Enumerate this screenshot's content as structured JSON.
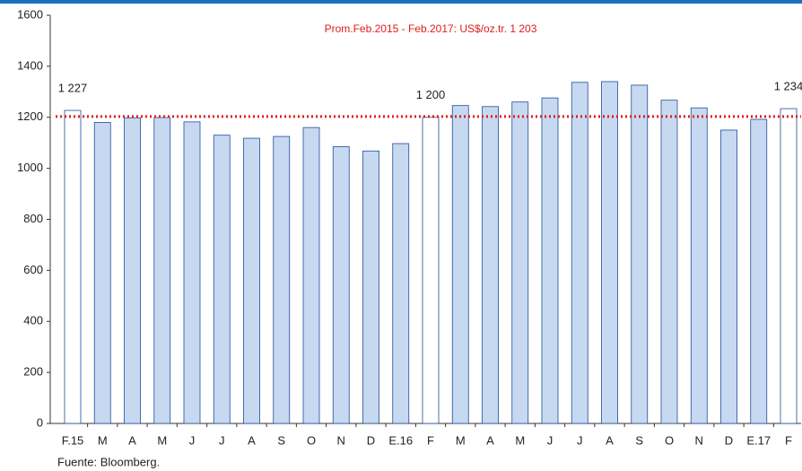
{
  "chart_data": {
    "type": "bar",
    "categories": [
      "F.15",
      "M",
      "A",
      "M",
      "J",
      "J",
      "A",
      "S",
      "O",
      "N",
      "D",
      "E.16",
      "F",
      "M",
      "A",
      "M",
      "J",
      "J",
      "A",
      "S",
      "O",
      "N",
      "D",
      "E.17",
      "F"
    ],
    "values": [
      1227,
      1180,
      1198,
      1199,
      1182,
      1130,
      1118,
      1125,
      1160,
      1085,
      1068,
      1097,
      1200,
      1246,
      1242,
      1260,
      1276,
      1337,
      1340,
      1326,
      1267,
      1237,
      1150,
      1192,
      1234
    ],
    "value_labels": [
      "1 227",
      null,
      null,
      null,
      null,
      null,
      null,
      null,
      null,
      null,
      null,
      null,
      "1 200",
      null,
      null,
      null,
      null,
      null,
      null,
      null,
      null,
      null,
      null,
      null,
      "1 234"
    ],
    "colors": [
      "#ffffff",
      "#c6d9f1",
      "#c6d9f1",
      "#c6d9f1",
      "#c6d9f1",
      "#c6d9f1",
      "#c6d9f1",
      "#c6d9f1",
      "#c6d9f1",
      "#c6d9f1",
      "#c6d9f1",
      "#c6d9f1",
      "#ffffff",
      "#c6d9f1",
      "#c6d9f1",
      "#c6d9f1",
      "#c6d9f1",
      "#c6d9f1",
      "#c6d9f1",
      "#c6d9f1",
      "#c6d9f1",
      "#c6d9f1",
      "#c6d9f1",
      "#c6d9f1",
      "#ffffff"
    ],
    "edge_color": "#1f4e9a",
    "reference_line": {
      "value": 1203,
      "label": "Prom.Feb.2015 - Feb.2017: US$/oz.tr. 1 203",
      "color": "#e31b1b"
    },
    "ylim": [
      0,
      1600
    ],
    "yticks": [
      0,
      200,
      400,
      600,
      800,
      1000,
      1200,
      1400,
      1600
    ],
    "source": "Fuente: Bloomberg."
  }
}
